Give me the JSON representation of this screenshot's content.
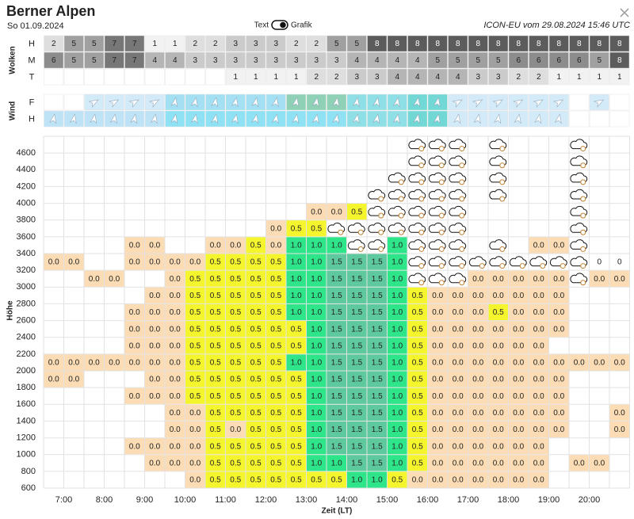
{
  "header": {
    "title": "Berner Alpen",
    "date": "So 01.09.2024",
    "toggle_left": "Text",
    "toggle_right": "Grafik",
    "source": "ICON-EU vom 29.08.2024 15:46 UTC"
  },
  "clouds": {
    "label": "Wolken",
    "colors": {
      "1": "#f2f2f2",
      "2": "#dedede",
      "3": "#cbcbcb",
      "4": "#b5b5b5",
      "5": "#a0a0a0",
      "6": "#8c8c8c",
      "7": "#777777",
      "8": "#5c5c5c"
    },
    "rows": [
      {
        "name": "H",
        "values": [
          2,
          5,
          5,
          7,
          7,
          1,
          1,
          2,
          2,
          3,
          3,
          3,
          2,
          2,
          5,
          5,
          8,
          8,
          8,
          8,
          8,
          8,
          8,
          8,
          8,
          8,
          8,
          8,
          8
        ]
      },
      {
        "name": "M",
        "values": [
          6,
          5,
          5,
          7,
          7,
          4,
          4,
          3,
          3,
          3,
          3,
          3,
          3,
          3,
          3,
          4,
          4,
          4,
          4,
          5,
          5,
          5,
          5,
          6,
          6,
          6,
          6,
          5,
          8
        ]
      },
      {
        "name": "T",
        "values": [
          null,
          null,
          null,
          null,
          null,
          null,
          null,
          null,
          null,
          1,
          1,
          1,
          1,
          2,
          2,
          3,
          3,
          4,
          4,
          4,
          4,
          3,
          3,
          2,
          2,
          1,
          1,
          1,
          1
        ]
      }
    ]
  },
  "wind": {
    "label": "Wind",
    "rows": [
      {
        "name": "F",
        "colors": [
          "#ffffff",
          "#ffffff",
          "#d3eaf8",
          "#d3eaf8",
          "#d3eaf8",
          "#d3eaf8",
          "#a3e0f4",
          "#a3e0f4",
          "#a3e0f4",
          "#a3e0f4",
          "#a3e0f4",
          "#a3e0f4",
          "#8ed1b6",
          "#8ed1b6",
          "#8ed1b6",
          "#8fdfe6",
          "#8fdfe6",
          "#8fdfe6",
          "#72d8d6",
          "#72d8d6",
          "#d3eaf8",
          "#d3eaf8",
          "#d3eaf8",
          "#d3eaf8",
          "#d3eaf8",
          "#d3eaf8",
          "#ffffff",
          "#d3eaf8",
          "#ffffff"
        ]
      },
      {
        "name": "H",
        "colors": [
          "#bfe3f6",
          "#bfe3f6",
          "#bfe3f6",
          "#bfe3f6",
          "#bfe3f6",
          "#bfe3f6",
          "#8ee2f4",
          "#8ee2f4",
          "#8ee2f4",
          "#8ee2f4",
          "#8ee2f4",
          "#8ee2f4",
          "#8ee2f4",
          "#8ee2f4",
          "#8ee2f4",
          "#8fdfe6",
          "#8fdfe6",
          "#8fdfe6",
          "#72d8d6",
          "#72d8d6",
          "#d3eaf8",
          "#d3eaf8",
          "#d3eaf8",
          "#d3eaf8",
          "#d3eaf8",
          "#d3eaf8",
          "#ffffff",
          "#ffffff",
          "#ffffff"
        ]
      }
    ]
  },
  "grid": {
    "y_label": "Höhe",
    "x_label": "Zeit (LT)",
    "ylim": [
      600,
      4800
    ],
    "yticks": [
      600,
      800,
      1000,
      1200,
      1400,
      1600,
      1800,
      2000,
      2200,
      2400,
      2600,
      2800,
      3000,
      3200,
      3400,
      3600,
      3800,
      4000,
      4200,
      4400,
      4600
    ],
    "xticks": [
      "7:00",
      "8:00",
      "9:00",
      "10:00",
      "11:00",
      "12:00",
      "13:00",
      "14:00",
      "15:00",
      "16:00",
      "17:00",
      "18:00",
      "19:00",
      "20:00"
    ],
    "colors": {
      "0.0": "#fbdcb4",
      "0.5": "#f5f52e",
      "1.0": "#2ee58a",
      "1.5": "#5ec99d",
      "0": "#ffffff"
    },
    "rows": [
      [
        null,
        null,
        null,
        null,
        null,
        null,
        null,
        null,
        null,
        null,
        null,
        null,
        null,
        null,
        null,
        null,
        null,
        null,
        "cloud",
        "cloud",
        "cloud",
        null,
        "cloud",
        null,
        null,
        null,
        "cloud",
        null,
        null
      ],
      [
        null,
        null,
        null,
        null,
        null,
        null,
        null,
        null,
        null,
        null,
        null,
        null,
        null,
        null,
        null,
        null,
        null,
        null,
        "cloud",
        "cloud",
        "cloud",
        null,
        "cloud",
        null,
        null,
        null,
        "cloud",
        null,
        null
      ],
      [
        null,
        null,
        null,
        null,
        null,
        null,
        null,
        null,
        null,
        null,
        null,
        null,
        null,
        null,
        null,
        null,
        null,
        "cloud",
        "cloud",
        "cloud",
        "cloud",
        null,
        "cloud",
        null,
        null,
        null,
        "cloud",
        null,
        null
      ],
      [
        null,
        null,
        null,
        null,
        null,
        null,
        null,
        null,
        null,
        null,
        null,
        null,
        null,
        null,
        null,
        null,
        "cloud",
        "cloud",
        "cloud",
        "cloud",
        "cloud",
        null,
        "cloud",
        null,
        null,
        null,
        "cloud",
        null,
        null
      ],
      [
        null,
        null,
        null,
        null,
        null,
        null,
        null,
        null,
        null,
        null,
        null,
        null,
        null,
        "0.0",
        "0.0",
        "0.5",
        "cloud",
        "cloud",
        "cloud",
        "cloud",
        "cloud",
        null,
        null,
        null,
        null,
        null,
        "cloud",
        null,
        null
      ],
      [
        null,
        null,
        null,
        null,
        null,
        null,
        null,
        null,
        null,
        null,
        null,
        "0.0",
        "0.5",
        "0.5",
        "cloud",
        "cloud",
        "cloud",
        "cloud",
        "cloud",
        "cloud",
        "cloud",
        null,
        null,
        null,
        null,
        null,
        "cloud",
        null,
        null
      ],
      [
        null,
        null,
        null,
        null,
        "0.0",
        "0.0",
        null,
        null,
        "0.0",
        "0.0",
        "0.5",
        "0.0",
        "1.0",
        "1.0",
        "1.0",
        "cloud",
        "cloud",
        "1.0",
        "cloud",
        "cloud",
        "cloud",
        null,
        "cloud",
        null,
        "0.0",
        "0.0",
        "cloud",
        null,
        null
      ],
      [
        "0.0",
        "0.0",
        null,
        null,
        "0.0",
        "0.0",
        "0.0",
        "0.0",
        "0.5",
        "0.5",
        "0.5",
        "0.5",
        "1.0",
        "1.0",
        "1.5",
        "1.5",
        "1.5",
        "1.0",
        "cloud",
        "cloud",
        "cloud",
        "cloud",
        "cloud",
        "cloud",
        "cloud",
        "cloud",
        "cloud",
        "0",
        "0"
      ],
      [
        null,
        null,
        "0.0",
        "0.0",
        null,
        null,
        "0.0",
        "0.5",
        "0.5",
        "0.5",
        "0.5",
        "0.5",
        "1.0",
        "1.0",
        "1.5",
        "1.5",
        "1.5",
        "1.0",
        "cloud",
        "cloud",
        "cloud",
        "0.0",
        "0.0",
        "0.0",
        "0.0",
        "0.0",
        "cloud",
        "0.0",
        "0.0"
      ],
      [
        null,
        null,
        null,
        null,
        null,
        "0.0",
        "0.0",
        "0.5",
        "0.5",
        "0.5",
        "0.5",
        "0.5",
        "1.0",
        "1.0",
        "1.5",
        "1.5",
        "1.5",
        "1.0",
        "0.5",
        "0.0",
        "0.0",
        "0.0",
        "0.0",
        "0.0",
        "0.0",
        "0.0",
        null,
        null,
        null
      ],
      [
        null,
        null,
        null,
        null,
        "0.0",
        "0.0",
        "0.0",
        "0.5",
        "0.5",
        "0.5",
        "0.5",
        "0.5",
        "1.0",
        "1.0",
        "1.5",
        "1.5",
        "1.5",
        "1.0",
        "0.5",
        "0.0",
        "0.0",
        "0.0",
        "0.5",
        "0.0",
        "0.0",
        "0.0",
        null,
        null,
        null
      ],
      [
        null,
        null,
        null,
        null,
        "0.0",
        "0.0",
        "0.0",
        "0.5",
        "0.5",
        "0.5",
        "0.5",
        "0.5",
        "0.5",
        "1.0",
        "1.5",
        "1.5",
        "1.5",
        "1.0",
        "0.5",
        "0.0",
        "0.0",
        "0.0",
        "0.0",
        "0.0",
        "0.0",
        "0.0",
        null,
        null,
        null
      ],
      [
        null,
        null,
        null,
        null,
        "0.0",
        "0.0",
        "0.0",
        "0.5",
        "0.5",
        "0.5",
        "0.5",
        "0.5",
        "0.5",
        "1.0",
        "1.5",
        "1.5",
        "1.5",
        "1.0",
        "0.5",
        "0.0",
        "0.0",
        "0.0",
        "0.0",
        "0.0",
        "0.0",
        null,
        null,
        null,
        null
      ],
      [
        "0.0",
        "0.0",
        "0.0",
        "0.0",
        "0.0",
        "0.0",
        "0.0",
        "0.5",
        "0.5",
        "0.5",
        "0.5",
        "0.5",
        "1.0",
        "1.0",
        "1.5",
        "1.5",
        "1.5",
        "1.0",
        "0.5",
        "0.0",
        "0.0",
        "0.0",
        "0.0",
        "0.0",
        "0.0",
        "0.0",
        "0.0",
        "0.0",
        "0.0"
      ],
      [
        "0.0",
        "0.0",
        null,
        null,
        null,
        "0.0",
        "0.0",
        "0.5",
        "0.5",
        "0.5",
        "0.5",
        "0.5",
        "0.5",
        "1.0",
        "1.5",
        "1.5",
        "1.5",
        "1.0",
        "0.5",
        "0.0",
        "0.0",
        "0.0",
        "0.0",
        "0.0",
        "0.0",
        "0.0",
        null,
        null,
        null
      ],
      [
        null,
        null,
        null,
        null,
        "0.0",
        "0.0",
        "0.0",
        "0.5",
        "0.5",
        "0.5",
        "0.5",
        "0.5",
        "0.5",
        "1.0",
        "1.5",
        "1.5",
        "1.5",
        "1.0",
        "0.5",
        "0.0",
        "0.0",
        "0.0",
        "0.0",
        "0.0",
        "0.0",
        "0.0",
        null,
        null,
        null
      ],
      [
        null,
        null,
        null,
        null,
        null,
        null,
        "0.0",
        "0.0",
        "0.5",
        "0.5",
        "0.5",
        "0.5",
        "0.5",
        "1.0",
        "1.5",
        "1.5",
        "1.5",
        "1.0",
        "0.5",
        "0.0",
        "0.0",
        "0.0",
        "0.0",
        "0.0",
        "0.0",
        "0.0",
        null,
        null,
        "0.0"
      ],
      [
        null,
        null,
        null,
        null,
        null,
        null,
        "0.0",
        "0.0",
        "0.5",
        "0.0",
        "0.5",
        "0.5",
        "0.5",
        "1.0",
        "1.5",
        "1.5",
        "1.5",
        "1.0",
        "0.5",
        "0.0",
        "0.0",
        "0.0",
        "0.0",
        "0.0",
        "0.0",
        "0.0",
        null,
        null,
        "0.0"
      ],
      [
        null,
        null,
        null,
        null,
        "0.0",
        "0.0",
        "0.0",
        "0.0",
        "0.5",
        "0.5",
        "0.5",
        "0.5",
        "0.5",
        "1.0",
        "1.5",
        "1.5",
        "1.5",
        "1.0",
        "0.5",
        "0.0",
        "0.0",
        "0.0",
        "0.0",
        "0.0",
        "0.0",
        null,
        null,
        null,
        null
      ],
      [
        null,
        null,
        null,
        null,
        null,
        "0.0",
        "0.0",
        "0.0",
        "0.5",
        "0.5",
        "0.5",
        "0.5",
        "0.5",
        "1.0",
        "1.0",
        "1.5",
        "1.5",
        "1.0",
        "0.5",
        "0.0",
        "0.0",
        "0.0",
        "0.0",
        "0.0",
        "0.0",
        null,
        "0.0",
        "0.0",
        null
      ],
      [
        null,
        null,
        null,
        null,
        null,
        null,
        null,
        "0.0",
        "0.5",
        "0.5",
        "0.5",
        "0.5",
        "0.5",
        "0.5",
        "0.5",
        "1.0",
        "1.0",
        "0.5",
        "0.0",
        "0.0",
        "0.0",
        "0.0",
        "0.0",
        "0.0",
        "0.0",
        null,
        null,
        null,
        null
      ]
    ]
  }
}
